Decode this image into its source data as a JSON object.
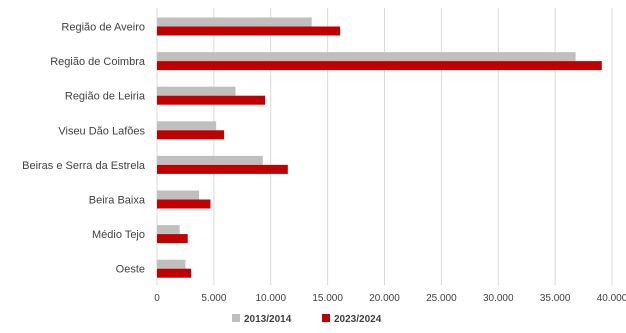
{
  "chart_data": {
    "type": "bar",
    "orientation": "horizontal",
    "categories": [
      "Região de Aveiro",
      "Região de Coimbra",
      "Região de Leiria",
      "Viseu Dão Lafões",
      "Beiras e Serra da Estrela",
      "Beira Baixa",
      "Médio Tejo",
      "Oeste"
    ],
    "series": [
      {
        "name": "2013/2014",
        "color": "#bfbfbf",
        "values": [
          13600,
          36800,
          6900,
          5200,
          9300,
          3700,
          2000,
          2500
        ]
      },
      {
        "name": "2023/2024",
        "color": "#c00000",
        "values": [
          16100,
          39100,
          9500,
          5900,
          11500,
          4700,
          2700,
          3000
        ]
      }
    ],
    "xlim": [
      0,
      40000
    ],
    "ticks": [
      "0",
      "5.000",
      "10.000",
      "15.000",
      "20.000",
      "25.000",
      "30.000",
      "35.000",
      "40.000"
    ],
    "grid": true,
    "legend_position": "bottom"
  }
}
